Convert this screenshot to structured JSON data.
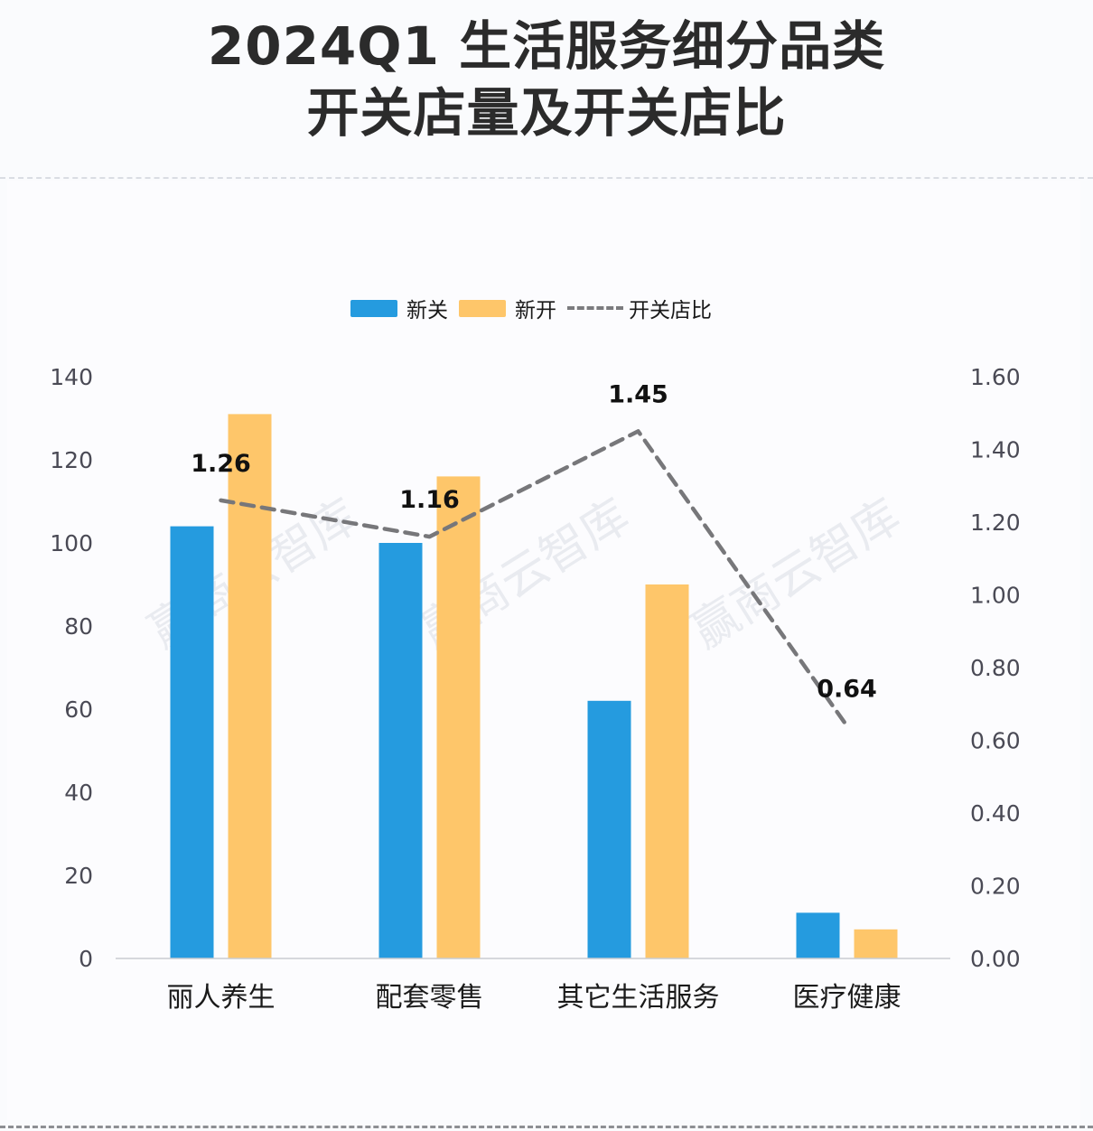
{
  "title": {
    "line1": "2024Q1 生活服务细分品类",
    "line2": "开关店量及开关店比"
  },
  "watermark": "赢商云智库",
  "colors": {
    "close": "#259bdf",
    "open": "#fec66a",
    "ratio_line": "#77777a",
    "axis_text": "#4a4a55",
    "label_text": "#111111"
  },
  "chart_data": {
    "type": "bar",
    "title": "2024Q1 生活服务细分品类 开关店量及开关店比",
    "categories": [
      "丽人养生",
      "配套零售",
      "其它生活服务",
      "医疗健康"
    ],
    "series": [
      {
        "name": "新关",
        "type": "bar",
        "axis": "left",
        "values": [
          104,
          100,
          62,
          11
        ]
      },
      {
        "name": "新开",
        "type": "bar",
        "axis": "left",
        "values": [
          131,
          116,
          90,
          7
        ]
      },
      {
        "name": "开关店比",
        "type": "line",
        "style": "dashed",
        "axis": "right",
        "values": [
          1.26,
          1.16,
          1.45,
          0.64
        ],
        "labels": [
          "1.26",
          "1.16",
          "1.45",
          "0.64"
        ]
      }
    ],
    "y_left": {
      "min": 0,
      "max": 140,
      "ticks": [
        "0",
        "20",
        "40",
        "60",
        "80",
        "100",
        "120",
        "140"
      ]
    },
    "y_right": {
      "min": 0,
      "max": 1.6,
      "ticks": [
        "0.00",
        "0.20",
        "0.40",
        "0.60",
        "0.80",
        "1.00",
        "1.20",
        "1.40",
        "1.60"
      ]
    },
    "legend": [
      "新关",
      "新开",
      "开关店比"
    ],
    "legend_position": "top-center",
    "grid": false
  }
}
